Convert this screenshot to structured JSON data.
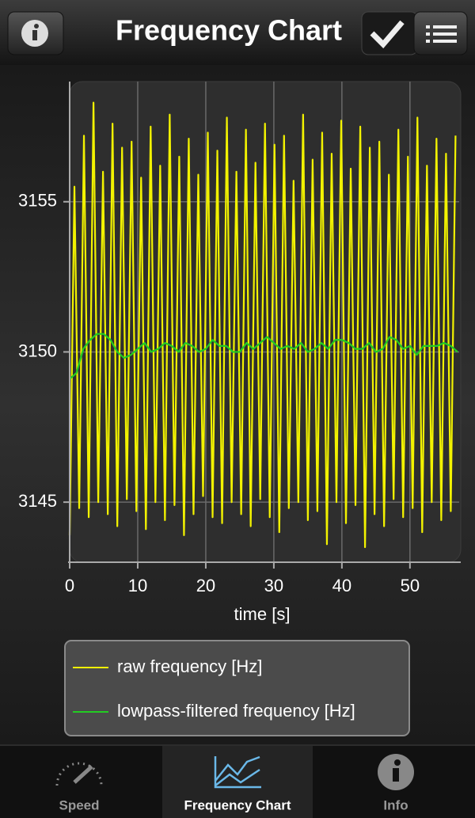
{
  "nav_bar": {
    "title": "Frequency Chart"
  },
  "chart_data": {
    "type": "line",
    "x_label": "time [s]",
    "xlim": [
      0,
      57
    ],
    "ylim": [
      3143,
      3159
    ],
    "xticks": [
      0,
      10,
      20,
      30,
      40,
      50
    ],
    "yticks": [
      3145,
      3150,
      3155
    ],
    "grid": true,
    "series": [
      {
        "name": "raw frequency [Hz]",
        "color": "#f2f200",
        "x": [
          0,
          0.7,
          1.4,
          2.1,
          2.8,
          3.5,
          4.2,
          4.9,
          5.6,
          6.3,
          7,
          7.7,
          8.4,
          9.1,
          9.8,
          10.5,
          11.2,
          11.9,
          12.6,
          13.3,
          14,
          14.7,
          15.4,
          16.1,
          16.8,
          17.5,
          18.2,
          18.9,
          19.6,
          20.3,
          21,
          21.7,
          22.4,
          23.1,
          23.8,
          24.5,
          25.2,
          25.9,
          26.6,
          27.3,
          28,
          28.7,
          29.4,
          30.1,
          30.8,
          31.5,
          32.2,
          32.9,
          33.6,
          34.3,
          35,
          35.7,
          36.4,
          37.1,
          37.8,
          38.5,
          39.2,
          39.9,
          40.6,
          41.3,
          42,
          42.7,
          43.4,
          44.1,
          44.8,
          45.5,
          46.2,
          46.9,
          47.6,
          48.3,
          49,
          49.7,
          50.4,
          51.1,
          51.8,
          52.5,
          53.2,
          53.9,
          54.6,
          55.3,
          56,
          56.7
        ],
        "values": [
          3143.9,
          3155.5,
          3144.8,
          3157.2,
          3144.5,
          3158.3,
          3145.0,
          3156.0,
          3144.6,
          3157.6,
          3144.2,
          3156.8,
          3145.1,
          3157.0,
          3144.7,
          3155.8,
          3144.1,
          3157.5,
          3145.0,
          3156.2,
          3144.4,
          3157.9,
          3144.9,
          3156.5,
          3143.9,
          3157.1,
          3144.6,
          3155.9,
          3145.2,
          3157.3,
          3144.5,
          3156.7,
          3144.3,
          3157.8,
          3145.0,
          3156.0,
          3144.6,
          3157.4,
          3144.2,
          3156.3,
          3145.1,
          3157.6,
          3144.5,
          3156.9,
          3144.0,
          3157.2,
          3144.8,
          3155.7,
          3145.0,
          3157.9,
          3144.4,
          3156.4,
          3144.7,
          3157.3,
          3143.6,
          3156.6,
          3145.0,
          3157.7,
          3144.3,
          3156.1,
          3144.9,
          3157.5,
          3143.5,
          3156.8,
          3144.6,
          3157.0,
          3144.2,
          3155.9,
          3145.1,
          3157.4,
          3144.5,
          3156.5,
          3144.8,
          3157.8,
          3144.0,
          3156.2,
          3145.0,
          3157.1,
          3144.4,
          3156.6,
          3144.7,
          3157.2
        ]
      },
      {
        "name": "lowpass-filtered frequency [Hz]",
        "color": "#22cc22",
        "x": [
          0,
          1,
          2,
          3,
          4,
          5,
          6,
          7,
          8,
          9,
          10,
          11,
          12,
          13,
          14,
          15,
          16,
          17,
          18,
          19,
          20,
          21,
          22,
          23,
          24,
          25,
          26,
          27,
          28,
          29,
          30,
          31,
          32,
          33,
          34,
          35,
          36,
          37,
          38,
          39,
          40,
          41,
          42,
          43,
          44,
          45,
          46,
          47,
          48,
          49,
          50,
          51,
          52,
          53,
          54,
          55,
          56,
          57
        ],
        "values": [
          3149.1,
          3149.3,
          3150.1,
          3150.4,
          3150.6,
          3150.6,
          3150.4,
          3150.0,
          3149.8,
          3149.9,
          3150.1,
          3150.3,
          3150.0,
          3150.1,
          3150.3,
          3150.2,
          3150.0,
          3150.3,
          3150.2,
          3150.0,
          3150.1,
          3150.4,
          3150.2,
          3150.2,
          3150.0,
          3150.0,
          3150.3,
          3150.1,
          3150.3,
          3150.5,
          3150.3,
          3150.1,
          3150.2,
          3150.1,
          3150.3,
          3150.0,
          3150.1,
          3150.3,
          3150.1,
          3150.4,
          3150.4,
          3150.3,
          3150.1,
          3150.1,
          3150.3,
          3150.0,
          3150.1,
          3150.5,
          3150.4,
          3150.1,
          3150.2,
          3149.9,
          3150.2,
          3150.2,
          3150.2,
          3150.3,
          3150.2,
          3150.0
        ]
      }
    ]
  },
  "tab_bar": {
    "tabs": [
      "Speed",
      "Frequency Chart",
      "Info"
    ],
    "selected": 1
  }
}
